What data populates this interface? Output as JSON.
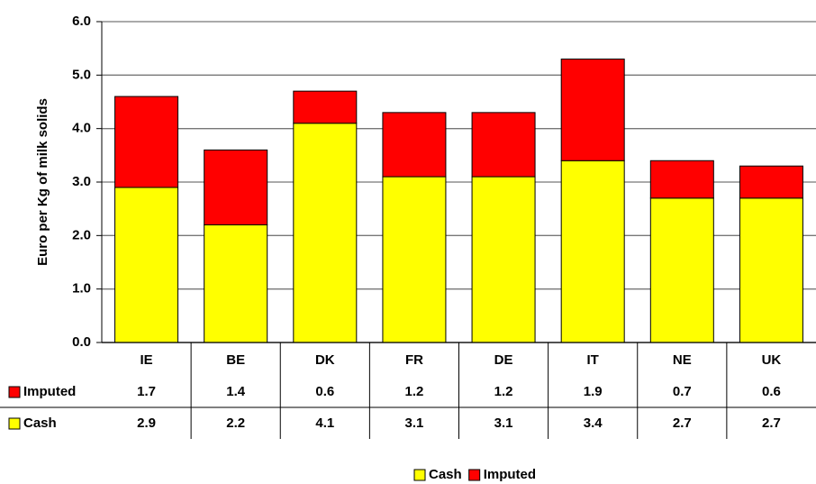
{
  "chart_data": {
    "type": "stacked-bar",
    "y_label": "Euro per Kg of milk solids",
    "categories": [
      "IE",
      "BE",
      "DK",
      "FR",
      "DE",
      "IT",
      "NE",
      "UK"
    ],
    "series": [
      {
        "name": "Cash",
        "color": "#ffff00",
        "values": [
          2.9,
          2.2,
          4.1,
          3.1,
          3.1,
          3.4,
          2.7,
          2.7
        ]
      },
      {
        "name": "Imputed",
        "color": "#ff0000",
        "values": [
          1.7,
          1.4,
          0.6,
          1.2,
          1.2,
          1.9,
          0.7,
          0.6
        ]
      }
    ],
    "ylim": [
      0,
      6
    ],
    "yticks": [
      {
        "value": 0,
        "label": "0.0"
      },
      {
        "value": 1,
        "label": "1.0"
      },
      {
        "value": 2,
        "label": "2.0"
      },
      {
        "value": 3,
        "label": "3.0"
      },
      {
        "value": 4,
        "label": "4.0"
      },
      {
        "value": 5,
        "label": "5.0"
      },
      {
        "value": 6,
        "label": "6.0"
      }
    ],
    "grid": true
  }
}
